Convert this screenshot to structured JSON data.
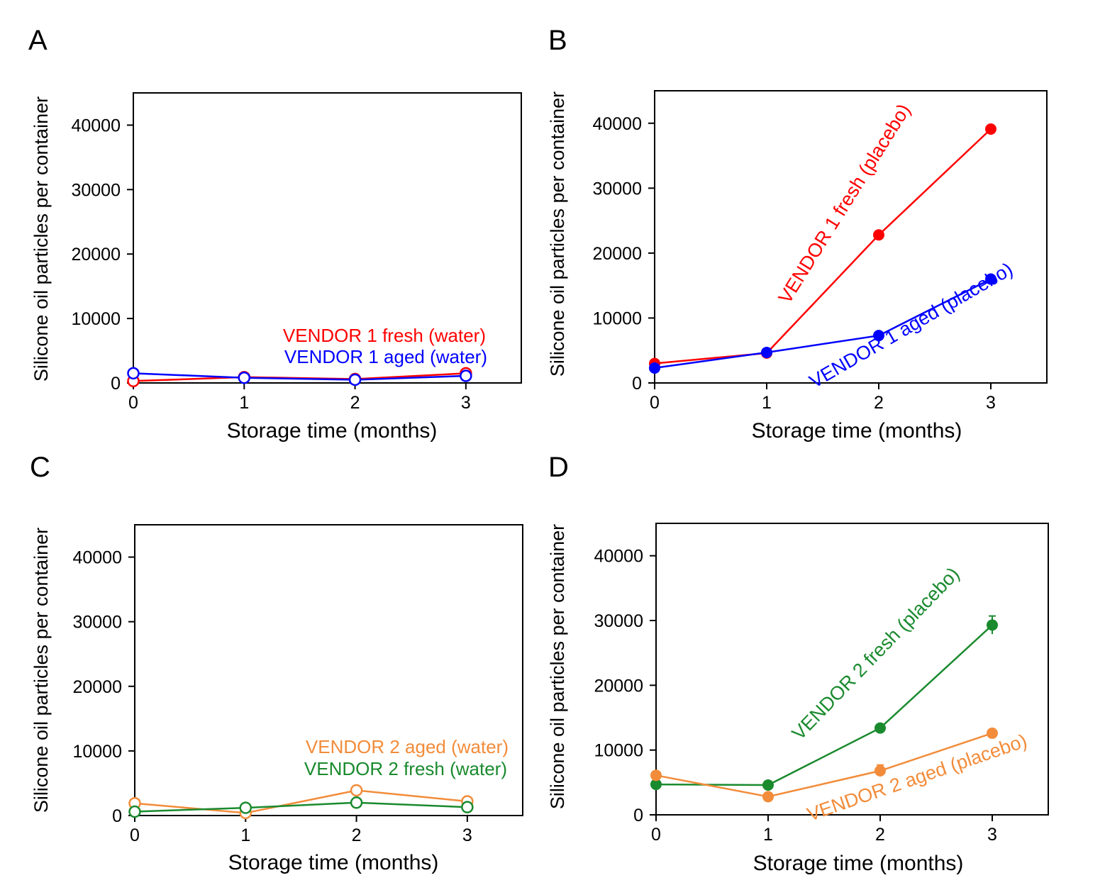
{
  "chart_data": [
    {
      "panel": "A",
      "type": "line",
      "xlabel": "Storage time (months)",
      "ylabel": "Silicone oil particles per container",
      "xlim": [
        0,
        3.5
      ],
      "ylim": [
        0,
        45000
      ],
      "xticks": [
        0,
        1,
        2,
        3
      ],
      "yticks": [
        0,
        10000,
        20000,
        30000,
        40000
      ],
      "grid": false,
      "legend": "inline labels above the lines at right",
      "series": [
        {
          "name": "VENDOR 1 fresh (water)",
          "color": "#ff0000",
          "marker": "open-circle",
          "x": [
            0,
            1,
            2,
            3
          ],
          "y": [
            300,
            900,
            600,
            1500
          ],
          "err": [
            0,
            0,
            700,
            300
          ]
        },
        {
          "name": "VENDOR 1 aged (water)",
          "color": "#0000ff",
          "marker": "open-circle",
          "x": [
            0,
            1,
            2,
            3
          ],
          "y": [
            1500,
            800,
            500,
            1100
          ],
          "err": [
            0,
            0,
            0,
            0
          ]
        }
      ]
    },
    {
      "panel": "B",
      "type": "line",
      "xlabel": "Storage time (months)",
      "ylabel": "Silicone oil particles per container",
      "xlim": [
        0,
        3.5
      ],
      "ylim": [
        0,
        45000
      ],
      "xticks": [
        0,
        1,
        2,
        3
      ],
      "yticks": [
        0,
        10000,
        20000,
        30000,
        40000
      ],
      "grid": false,
      "legend": "inline labels rotated along the lines",
      "series": [
        {
          "name": "VENDOR 1 fresh (placebo)",
          "color": "#ff0000",
          "marker": "filled-circle",
          "x": [
            0,
            1,
            2,
            3
          ],
          "y": [
            3000,
            4600,
            22800,
            39100
          ],
          "err": [
            0,
            0,
            0,
            0
          ]
        },
        {
          "name": "VENDOR 1 aged (placebo)",
          "color": "#0000ff",
          "marker": "filled-circle",
          "x": [
            0,
            1,
            2,
            3
          ],
          "y": [
            2300,
            4700,
            7300,
            16000
          ],
          "err": [
            0,
            0,
            0,
            0
          ]
        }
      ]
    },
    {
      "panel": "C",
      "type": "line",
      "xlabel": "Storage time (months)",
      "ylabel": "Silicone oil particles per container",
      "xlim": [
        0,
        3.5
      ],
      "ylim": [
        0,
        45000
      ],
      "xticks": [
        0,
        1,
        2,
        3
      ],
      "yticks": [
        0,
        10000,
        20000,
        30000,
        40000
      ],
      "grid": false,
      "legend": "inline labels above the lines at right",
      "series": [
        {
          "name": "VENDOR 2 aged (water)",
          "color": "#f28c3a",
          "marker": "open-circle",
          "x": [
            0,
            1,
            2,
            3
          ],
          "y": [
            1900,
            400,
            3900,
            2200
          ],
          "err": [
            0,
            0,
            0,
            0
          ]
        },
        {
          "name": "VENDOR 2 fresh (water)",
          "color": "#1a8a2e",
          "marker": "open-circle",
          "x": [
            0,
            1,
            2,
            3
          ],
          "y": [
            600,
            1200,
            2000,
            1300
          ],
          "err": [
            0,
            0,
            700,
            0
          ]
        }
      ]
    },
    {
      "panel": "D",
      "type": "line",
      "xlabel": "Storage time (months)",
      "ylabel": "Silicone oil particles per container",
      "xlim": [
        0,
        3.5
      ],
      "ylim": [
        0,
        45000
      ],
      "xticks": [
        0,
        1,
        2,
        3
      ],
      "yticks": [
        0,
        10000,
        20000,
        30000,
        40000
      ],
      "grid": false,
      "legend": "inline labels rotated along the lines",
      "series": [
        {
          "name": "VENDOR 2 fresh (placebo)",
          "color": "#1a8a2e",
          "marker": "filled-circle",
          "x": [
            0,
            1,
            2,
            3
          ],
          "y": [
            4700,
            4600,
            13400,
            29300
          ],
          "err": [
            0,
            0,
            0,
            1400
          ]
        },
        {
          "name": "VENDOR 2 aged (placebo)",
          "color": "#f28c3a",
          "marker": "filled-circle",
          "x": [
            0,
            1,
            2,
            3
          ],
          "y": [
            6100,
            2800,
            6800,
            12600
          ],
          "err": [
            0,
            0,
            900,
            0
          ]
        }
      ]
    }
  ]
}
